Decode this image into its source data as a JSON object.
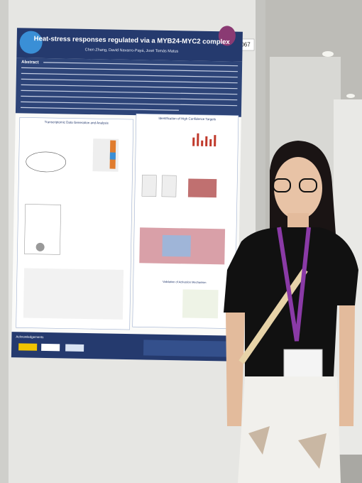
{
  "poster": {
    "number": "067",
    "title": "Heat-stress responses regulated via a MYB24-MYC2 complex",
    "authors": "Chen Zhang, David Navarro-Payá, José Tomás Matus",
    "abstract_heading": "Abstract",
    "sections": [
      "Transcriptomic Data Generation and Analysis",
      "Identification of High Confidence Targets",
      "Validation of Activation Mechanism"
    ],
    "acknowledgements_heading": "Acknowledgements"
  }
}
